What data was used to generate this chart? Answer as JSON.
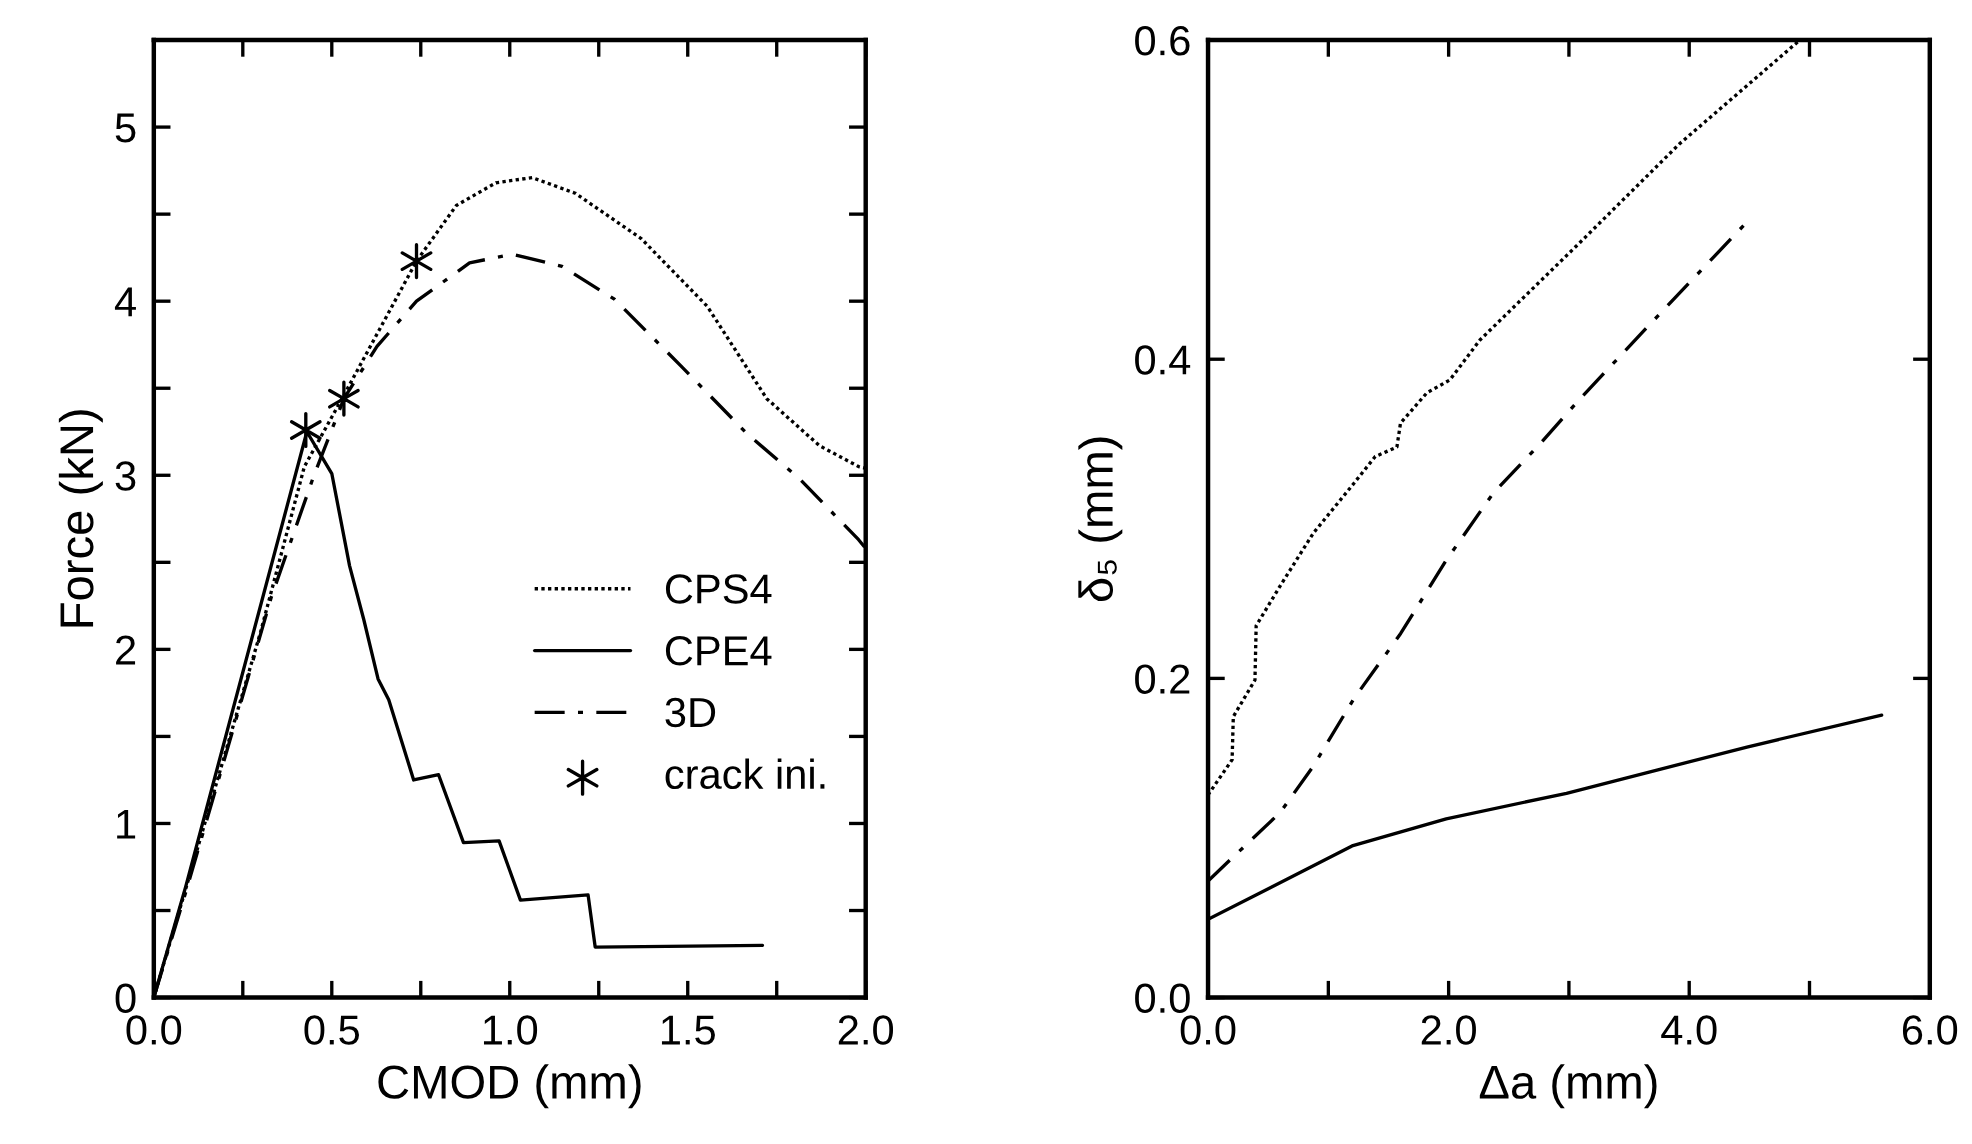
{
  "chart_data": [
    {
      "type": "line",
      "xlabel": "CMOD (mm)",
      "ylabel": "Force (kN)",
      "xlim": [
        0,
        2.0
      ],
      "ylim": [
        0,
        5.5
      ],
      "xticks": [
        {
          "value": 0,
          "label": "0.0"
        },
        {
          "value": 0.25,
          "label": null
        },
        {
          "value": 0.5,
          "label": "0.5"
        },
        {
          "value": 0.75,
          "label": null
        },
        {
          "value": 1.0,
          "label": "1.0"
        },
        {
          "value": 1.25,
          "label": null
        },
        {
          "value": 1.5,
          "label": "1.5"
        },
        {
          "value": 1.75,
          "label": null
        },
        {
          "value": 2.0,
          "label": "2.0"
        }
      ],
      "yticks": [
        0,
        {
          "value": 0.5,
          "label": null
        },
        1,
        {
          "value": 1.5,
          "label": null
        },
        2,
        {
          "value": 2.5,
          "label": null
        },
        3,
        {
          "value": 3.5,
          "label": null
        },
        4,
        {
          "value": 4.5,
          "label": null
        },
        5
      ],
      "grid": false,
      "legend": "lower right",
      "series": [
        {
          "name": "CPS4",
          "color": "#000000",
          "line_style": "dotted",
          "x": [
            0,
            0.089,
            0.2,
            0.3,
            0.423,
            0.534,
            0.738,
            0.85,
            0.961,
            1.063,
            1.184,
            1.369,
            1.555,
            1.722,
            1.87,
            1.98,
            2.0
          ],
          "values": [
            0,
            0.62,
            1.4,
            2.1,
            3.05,
            3.46,
            4.23,
            4.55,
            4.68,
            4.71,
            4.62,
            4.36,
            3.97,
            3.44,
            3.17,
            3.05,
            3.04
          ]
        },
        {
          "name": "CPE4",
          "color": "#000000",
          "line_style": "solid",
          "x": [
            0,
            0.09,
            0.43,
            0.5,
            0.55,
            0.59,
            0.63,
            0.66,
            0.73,
            0.8,
            0.87,
            0.97,
            1.03,
            1.22,
            1.24,
            1.71
          ],
          "values": [
            0,
            0.64,
            3.25,
            3.01,
            2.48,
            2.17,
            1.83,
            1.71,
            1.25,
            1.28,
            0.89,
            0.9,
            0.56,
            0.59,
            0.29,
            0.3
          ]
        },
        {
          "name": "3D",
          "color": "#000000",
          "line_style": "dashdot",
          "x": [
            0,
            0.089,
            0.2,
            0.33,
            0.45,
            0.534,
            0.627,
            0.738,
            0.887,
            1.007,
            1.147,
            1.295,
            1.48,
            1.666,
            1.814,
            1.98,
            2.0
          ],
          "values": [
            0,
            0.6,
            1.38,
            2.3,
            3.0,
            3.44,
            3.74,
            4.0,
            4.22,
            4.27,
            4.2,
            4.01,
            3.63,
            3.24,
            2.98,
            2.63,
            2.58
          ]
        },
        {
          "name": "crack ini.",
          "type": "scatter",
          "marker": "cross",
          "color": "#000000",
          "x": [
            0.427,
            0.534,
            0.738
          ],
          "values": [
            3.26,
            3.44,
            4.23
          ]
        }
      ]
    },
    {
      "type": "line",
      "xlabel": "Δa (mm)",
      "ylabel": "δ₅ (mm)",
      "xlim": [
        0,
        6.0
      ],
      "ylim": [
        0,
        0.6
      ],
      "xticks": [
        {
          "value": 0,
          "label": "0.0"
        },
        {
          "value": 1,
          "label": null
        },
        {
          "value": 2,
          "label": "2.0"
        },
        {
          "value": 3,
          "label": null
        },
        {
          "value": 4,
          "label": "4.0"
        },
        {
          "value": 5,
          "label": null
        },
        {
          "value": 6,
          "label": "6.0"
        }
      ],
      "yticks": [
        {
          "value": 0,
          "label": "0.0"
        },
        {
          "value": 0.2,
          "label": "0.2"
        },
        {
          "value": 0.4,
          "label": "0.4"
        },
        {
          "value": 0.6,
          "label": "0.6"
        }
      ],
      "grid": false,
      "series": [
        {
          "color": "#000000",
          "line_style": "dotted",
          "x": [
            0,
            0.2,
            0.21,
            0.39,
            0.4,
            0.6,
            0.875,
            1.21,
            1.39,
            1.57,
            1.6,
            1.82,
            2.01,
            2.26,
            3.09,
            3.92,
            4.92
          ],
          "values": [
            0.127,
            0.149,
            0.176,
            0.199,
            0.233,
            0.258,
            0.291,
            0.322,
            0.339,
            0.345,
            0.36,
            0.379,
            0.387,
            0.412,
            0.473,
            0.535,
            0.6
          ]
        },
        {
          "color": "#000000",
          "line_style": "solid",
          "x": [
            0,
            1.197,
            1.98,
            2.98,
            4.48,
            5.6
          ],
          "values": [
            0.049,
            0.095,
            0.112,
            0.128,
            0.157,
            0.177
          ]
        },
        {
          "color": "#000000",
          "line_style": "dashdot",
          "x": [
            0,
            0.18,
            0.6,
            0.875,
            1.21,
            1.6,
            1.98,
            2.37,
            2.76,
            3.09,
            3.65,
            4.48
          ],
          "values": [
            0.073,
            0.086,
            0.116,
            0.145,
            0.187,
            0.228,
            0.274,
            0.316,
            0.347,
            0.375,
            0.42,
            0.486
          ]
        }
      ]
    }
  ]
}
